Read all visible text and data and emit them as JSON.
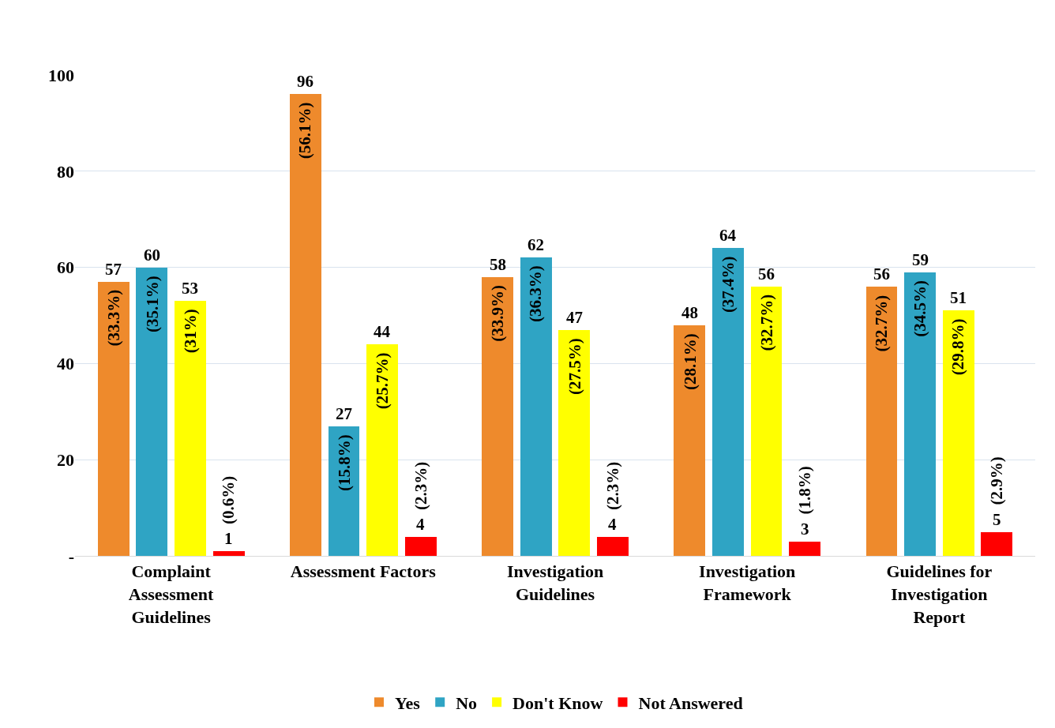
{
  "chart_data": {
    "type": "bar",
    "categories": [
      "Complaint Assessment Guidelines",
      "Assessment Factors",
      "Investigation Guidelines",
      "Investigation Framework",
      "Guidelines for Investigation Report"
    ],
    "series": [
      {
        "name": "Yes",
        "color": "#ee8a2c",
        "values": [
          57,
          96,
          58,
          48,
          56
        ]
      },
      {
        "name": "No",
        "color": "#2fa4c4",
        "values": [
          60,
          27,
          62,
          64,
          59
        ]
      },
      {
        "name": "Don't Know",
        "color": "#ffff00",
        "values": [
          53,
          44,
          47,
          56,
          51
        ]
      },
      {
        "name": "Not Answered",
        "color": "#ff0000",
        "values": [
          1,
          4,
          4,
          3,
          5
        ]
      }
    ],
    "annotations": [
      "(33.3%)",
      "(56.1%)",
      "(33.9%)",
      "(28.1%)",
      "(32.7%)",
      "(35.1%)",
      "(15.8%)",
      "(36.3%)",
      "(37.4%)",
      "(34.5%)",
      "(31%)",
      "(25.7%)",
      "(27.5%)",
      "(32.7%)",
      "(29.8%)",
      "(0.6%)",
      "(2.3%)",
      "(2.3%)",
      "(1.8%)",
      "(2.9%)"
    ],
    "ylim": [
      0,
      100
    ],
    "yticks": [
      {
        "value": 0,
        "label": "-"
      },
      20,
      40,
      60,
      80,
      100
    ],
    "grid": "y",
    "legend": "bottom",
    "data_labels": true
  }
}
